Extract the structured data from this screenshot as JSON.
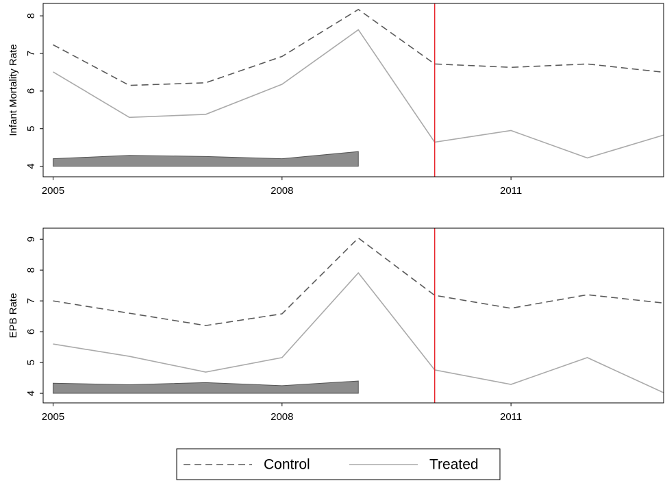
{
  "chart_data": [
    {
      "type": "line",
      "ylabel": "Infant Mortality Rate",
      "x": [
        2005,
        2006,
        2007,
        2008,
        2009,
        2010,
        2011,
        2012,
        2013
      ],
      "xlim": [
        2004.87,
        2013
      ],
      "xticks": [
        2005,
        2008,
        2011
      ],
      "ylim": [
        3.72,
        8.33
      ],
      "yticks": [
        4,
        5,
        6,
        7,
        8
      ],
      "series": [
        {
          "name": "Control",
          "color": "#5a5a5a",
          "dashed": true,
          "values": [
            7.23,
            6.15,
            6.22,
            6.92,
            8.17,
            6.72,
            6.63,
            6.72,
            6.5
          ]
        },
        {
          "name": "Treated",
          "color": "#aaaaaa",
          "dashed": false,
          "values": [
            6.51,
            5.3,
            5.38,
            6.18,
            7.63,
            4.64,
            4.95,
            4.22,
            4.83
          ]
        }
      ],
      "band": {
        "x": [
          2005,
          2006,
          2007,
          2008,
          2009
        ],
        "base": 4,
        "values": [
          4.2,
          4.29,
          4.26,
          4.2,
          4.39
        ],
        "color": "#8c8c8c"
      },
      "vline": {
        "value": 2010,
        "color": "#e8262d"
      }
    },
    {
      "type": "line",
      "ylabel": "EPB Rate",
      "x": [
        2005,
        2006,
        2007,
        2008,
        2009,
        2010,
        2011,
        2012,
        2013
      ],
      "xlim": [
        2004.87,
        2013
      ],
      "xticks": [
        2005,
        2008,
        2011
      ],
      "ylim": [
        3.69,
        9.36
      ],
      "yticks": [
        4,
        5,
        6,
        7,
        8,
        9
      ],
      "series": [
        {
          "color": "#5a5a5a",
          "dashed": true,
          "values": [
            7.0,
            6.6,
            6.2,
            6.58,
            9.04,
            7.18,
            6.76,
            7.2,
            6.93
          ]
        },
        {
          "color": "#aaaaaa",
          "dashed": false,
          "values": [
            5.6,
            5.2,
            4.69,
            5.16,
            7.91,
            4.76,
            4.29,
            5.16,
            4.02
          ]
        }
      ],
      "band": {
        "x": [
          2005,
          2006,
          2007,
          2008,
          2009
        ],
        "base": 4,
        "values": [
          4.33,
          4.28,
          4.35,
          4.25,
          4.4
        ],
        "color": "#8c8c8c"
      },
      "vline": {
        "value": 2010,
        "color": "#e8262d"
      }
    }
  ]
}
